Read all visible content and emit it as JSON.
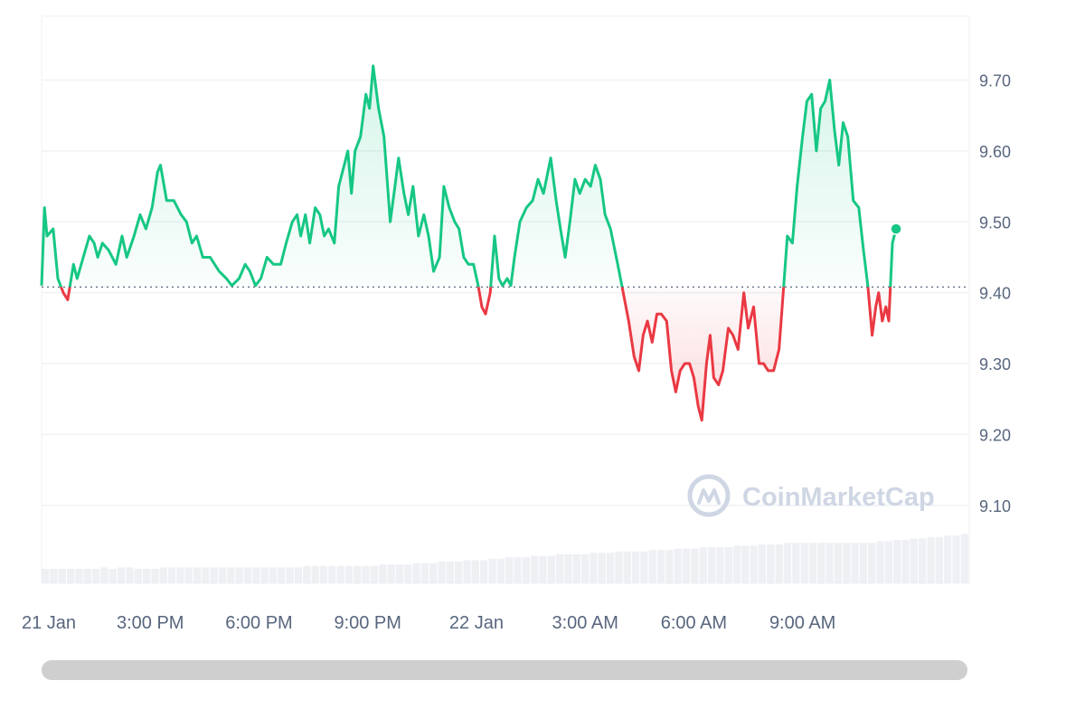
{
  "watermark": {
    "text": "CoinMarketCap",
    "icon": "coinmarketcap-logo-icon"
  },
  "colors": {
    "up": "#16c784",
    "down": "#ea3943",
    "grid": "#eff2f5",
    "axis_text": "#58667e",
    "baseline": "#58667e",
    "volume": "#eef0f4",
    "scrollbar": "#cfcfcf"
  },
  "chart_data": {
    "type": "line",
    "title": "",
    "xlabel": "",
    "ylabel": "",
    "ylim": [
      8.99,
      9.79
    ],
    "xlim_hours": [
      12,
      37.6
    ],
    "baseline": 9.408,
    "y_ticks": [
      "9.70",
      "9.60",
      "9.50",
      "9.40",
      "9.30",
      "9.20",
      "9.10"
    ],
    "x_ticks": [
      {
        "label": "21 Jan",
        "hour": 12
      },
      {
        "label": "3:00 PM",
        "hour": 15
      },
      {
        "label": "6:00 PM",
        "hour": 18
      },
      {
        "label": "9:00 PM",
        "hour": 21
      },
      {
        "label": "22 Jan",
        "hour": 24
      },
      {
        "label": "3:00 AM",
        "hour": 27
      },
      {
        "label": "6:00 AM",
        "hour": 30
      },
      {
        "label": "9:00 AM",
        "hour": 33
      }
    ],
    "grid": true,
    "legend": "none",
    "series": [
      {
        "points": [
          [
            12.0,
            9.41
          ],
          [
            12.08,
            9.52
          ],
          [
            12.15,
            9.48
          ],
          [
            12.32,
            9.49
          ],
          [
            12.45,
            9.42
          ],
          [
            12.6,
            9.4
          ],
          [
            12.72,
            9.39
          ],
          [
            12.88,
            9.44
          ],
          [
            12.98,
            9.42
          ],
          [
            13.15,
            9.45
          ],
          [
            13.32,
            9.48
          ],
          [
            13.45,
            9.47
          ],
          [
            13.55,
            9.45
          ],
          [
            13.68,
            9.47
          ],
          [
            13.85,
            9.46
          ],
          [
            14.05,
            9.44
          ],
          [
            14.22,
            9.48
          ],
          [
            14.35,
            9.45
          ],
          [
            14.55,
            9.48
          ],
          [
            14.72,
            9.51
          ],
          [
            14.88,
            9.49
          ],
          [
            15.05,
            9.52
          ],
          [
            15.2,
            9.57
          ],
          [
            15.28,
            9.58
          ],
          [
            15.45,
            9.53
          ],
          [
            15.65,
            9.53
          ],
          [
            15.85,
            9.51
          ],
          [
            16.0,
            9.5
          ],
          [
            16.15,
            9.47
          ],
          [
            16.28,
            9.48
          ],
          [
            16.45,
            9.45
          ],
          [
            16.65,
            9.45
          ],
          [
            16.9,
            9.43
          ],
          [
            17.1,
            9.42
          ],
          [
            17.25,
            9.41
          ],
          [
            17.45,
            9.42
          ],
          [
            17.62,
            9.44
          ],
          [
            17.75,
            9.43
          ],
          [
            17.9,
            9.41
          ],
          [
            18.05,
            9.42
          ],
          [
            18.22,
            9.45
          ],
          [
            18.4,
            9.44
          ],
          [
            18.6,
            9.44
          ],
          [
            18.75,
            9.47
          ],
          [
            18.92,
            9.5
          ],
          [
            19.05,
            9.51
          ],
          [
            19.15,
            9.48
          ],
          [
            19.28,
            9.51
          ],
          [
            19.4,
            9.47
          ],
          [
            19.55,
            9.52
          ],
          [
            19.68,
            9.51
          ],
          [
            19.8,
            9.48
          ],
          [
            19.92,
            9.49
          ],
          [
            20.08,
            9.47
          ],
          [
            20.2,
            9.55
          ],
          [
            20.35,
            9.58
          ],
          [
            20.45,
            9.6
          ],
          [
            20.55,
            9.54
          ],
          [
            20.65,
            9.6
          ],
          [
            20.8,
            9.62
          ],
          [
            20.95,
            9.68
          ],
          [
            21.05,
            9.66
          ],
          [
            21.15,
            9.72
          ],
          [
            21.3,
            9.66
          ],
          [
            21.45,
            9.62
          ],
          [
            21.62,
            9.5
          ],
          [
            21.75,
            9.55
          ],
          [
            21.85,
            9.59
          ],
          [
            22.0,
            9.54
          ],
          [
            22.12,
            9.51
          ],
          [
            22.25,
            9.55
          ],
          [
            22.4,
            9.48
          ],
          [
            22.55,
            9.51
          ],
          [
            22.68,
            9.48
          ],
          [
            22.82,
            9.43
          ],
          [
            22.98,
            9.45
          ],
          [
            23.1,
            9.55
          ],
          [
            23.25,
            9.52
          ],
          [
            23.4,
            9.5
          ],
          [
            23.52,
            9.49
          ],
          [
            23.65,
            9.45
          ],
          [
            23.78,
            9.44
          ],
          [
            23.92,
            9.44
          ],
          [
            24.05,
            9.41
          ],
          [
            24.15,
            9.38
          ],
          [
            24.25,
            9.37
          ],
          [
            24.38,
            9.4
          ],
          [
            24.5,
            9.48
          ],
          [
            24.62,
            9.42
          ],
          [
            24.72,
            9.41
          ],
          [
            24.85,
            9.42
          ],
          [
            24.95,
            9.41
          ],
          [
            25.05,
            9.45
          ],
          [
            25.2,
            9.5
          ],
          [
            25.38,
            9.52
          ],
          [
            25.55,
            9.53
          ],
          [
            25.7,
            9.56
          ],
          [
            25.85,
            9.54
          ],
          [
            26.05,
            9.59
          ],
          [
            26.2,
            9.53
          ],
          [
            26.32,
            9.49
          ],
          [
            26.45,
            9.45
          ],
          [
            26.58,
            9.5
          ],
          [
            26.72,
            9.56
          ],
          [
            26.85,
            9.54
          ],
          [
            27.0,
            9.56
          ],
          [
            27.15,
            9.55
          ],
          [
            27.28,
            9.58
          ],
          [
            27.42,
            9.56
          ],
          [
            27.55,
            9.51
          ],
          [
            27.7,
            9.49
          ],
          [
            27.9,
            9.44
          ],
          [
            28.05,
            9.4
          ],
          [
            28.2,
            9.36
          ],
          [
            28.35,
            9.31
          ],
          [
            28.48,
            9.29
          ],
          [
            28.6,
            9.34
          ],
          [
            28.72,
            9.36
          ],
          [
            28.85,
            9.33
          ],
          [
            28.98,
            9.37
          ],
          [
            29.1,
            9.37
          ],
          [
            29.25,
            9.36
          ],
          [
            29.38,
            9.29
          ],
          [
            29.5,
            9.26
          ],
          [
            29.62,
            9.29
          ],
          [
            29.75,
            9.3
          ],
          [
            29.88,
            9.3
          ],
          [
            30.0,
            9.28
          ],
          [
            30.12,
            9.24
          ],
          [
            30.22,
            9.22
          ],
          [
            30.35,
            9.3
          ],
          [
            30.45,
            9.34
          ],
          [
            30.55,
            9.28
          ],
          [
            30.68,
            9.27
          ],
          [
            30.8,
            9.29
          ],
          [
            30.95,
            9.35
          ],
          [
            31.08,
            9.34
          ],
          [
            31.22,
            9.32
          ],
          [
            31.38,
            9.4
          ],
          [
            31.5,
            9.35
          ],
          [
            31.65,
            9.38
          ],
          [
            31.8,
            9.3
          ],
          [
            31.92,
            9.3
          ],
          [
            32.05,
            9.29
          ],
          [
            32.2,
            9.29
          ],
          [
            32.35,
            9.32
          ],
          [
            32.48,
            9.41
          ],
          [
            32.58,
            9.48
          ],
          [
            32.72,
            9.47
          ],
          [
            32.85,
            9.55
          ],
          [
            33.0,
            9.62
          ],
          [
            33.12,
            9.67
          ],
          [
            33.25,
            9.68
          ],
          [
            33.38,
            9.6
          ],
          [
            33.5,
            9.66
          ],
          [
            33.62,
            9.67
          ],
          [
            33.75,
            9.7
          ],
          [
            33.88,
            9.63
          ],
          [
            34.0,
            9.58
          ],
          [
            34.12,
            9.64
          ],
          [
            34.25,
            9.62
          ],
          [
            34.4,
            9.53
          ],
          [
            34.55,
            9.52
          ],
          [
            34.68,
            9.46
          ],
          [
            34.8,
            9.41
          ],
          [
            34.92,
            9.34
          ],
          [
            35.02,
            9.38
          ],
          [
            35.1,
            9.4
          ],
          [
            35.2,
            9.36
          ],
          [
            35.3,
            9.38
          ],
          [
            35.38,
            9.36
          ],
          [
            35.48,
            9.47
          ],
          [
            35.58,
            9.49
          ]
        ]
      }
    ],
    "volume": [
      0.1,
      0.1,
      0.1,
      0.1,
      0.1,
      0.1,
      0.1,
      0.11,
      0.1,
      0.11,
      0.11,
      0.1,
      0.1,
      0.1,
      0.11,
      0.11,
      0.11,
      0.11,
      0.11,
      0.11,
      0.11,
      0.11,
      0.11,
      0.11,
      0.11,
      0.11,
      0.11,
      0.11,
      0.11,
      0.11,
      0.11,
      0.12,
      0.12,
      0.12,
      0.12,
      0.12,
      0.12,
      0.12,
      0.12,
      0.12,
      0.13,
      0.13,
      0.13,
      0.13,
      0.14,
      0.14,
      0.14,
      0.15,
      0.15,
      0.15,
      0.16,
      0.16,
      0.16,
      0.17,
      0.17,
      0.18,
      0.18,
      0.18,
      0.19,
      0.19,
      0.19,
      0.2,
      0.2,
      0.2,
      0.2,
      0.21,
      0.21,
      0.21,
      0.22,
      0.22,
      0.22,
      0.22,
      0.23,
      0.23,
      0.23,
      0.24,
      0.24,
      0.24,
      0.25,
      0.25,
      0.25,
      0.25,
      0.26,
      0.26,
      0.26,
      0.27,
      0.27,
      0.27,
      0.28,
      0.28,
      0.28,
      0.28,
      0.28,
      0.28,
      0.28,
      0.28,
      0.28,
      0.28,
      0.28,
      0.29,
      0.29,
      0.3,
      0.3,
      0.31,
      0.31,
      0.32,
      0.32,
      0.33,
      0.33,
      0.34
    ]
  }
}
